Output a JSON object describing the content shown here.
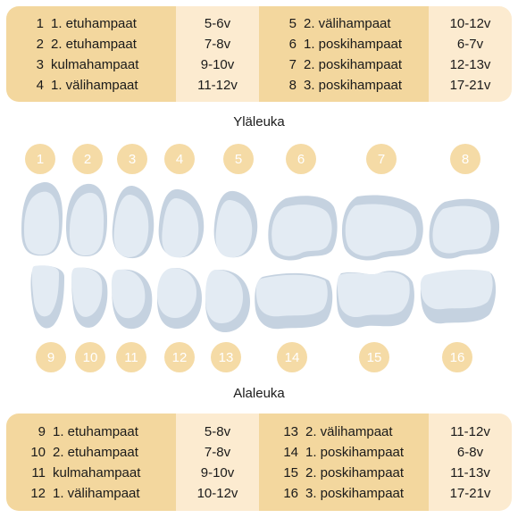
{
  "upper": {
    "title": "Yläleuka",
    "left": [
      {
        "num": "1",
        "name": "1. etuhampaat",
        "age": "5-6v"
      },
      {
        "num": "2",
        "name": "2. etuhampaat",
        "age": "7-8v"
      },
      {
        "num": "3",
        "name": "kulmahampaat",
        "age": "9-10v"
      },
      {
        "num": "4",
        "name": "1. välihampaat",
        "age": "11-12v"
      }
    ],
    "right": [
      {
        "num": "5",
        "name": "2. välihampaat",
        "age": "10-12v"
      },
      {
        "num": "6",
        "name": "1. poskihampaat",
        "age": "6-7v"
      },
      {
        "num": "7",
        "name": "2. poskihampaat",
        "age": "12-13v"
      },
      {
        "num": "8",
        "name": "3. poskihampaat",
        "age": "17-21v"
      }
    ],
    "badges": [
      "1",
      "2",
      "3",
      "4",
      "5",
      "6",
      "7",
      "8"
    ]
  },
  "lower": {
    "title": "Alaleuka",
    "left": [
      {
        "num": "9",
        "name": "1. etuhampaat",
        "age": "5-8v"
      },
      {
        "num": "10",
        "name": "2. etuhampaat",
        "age": "7-8v"
      },
      {
        "num": "11",
        "name": "kulmahampaat",
        "age": "9-10v"
      },
      {
        "num": "12",
        "name": "1. välihampaat",
        "age": "10-12v"
      }
    ],
    "right": [
      {
        "num": "13",
        "name": "2. välihampaat",
        "age": "11-12v"
      },
      {
        "num": "14",
        "name": "1. poskihampaat",
        "age": "6-8v"
      },
      {
        "num": "15",
        "name": "2. poskihampaat",
        "age": "11-13v"
      },
      {
        "num": "16",
        "name": "3. poskihampaat",
        "age": "17-21v"
      }
    ],
    "badges": [
      "9",
      "10",
      "11",
      "12",
      "13",
      "14",
      "15",
      "16"
    ]
  },
  "colors": {
    "table_dark": "#f3d79e",
    "table_light": "#fcebd0",
    "badge": "#f5dba6",
    "tooth_front": "#e3ebf3",
    "tooth_back": "#c5d2e0"
  }
}
